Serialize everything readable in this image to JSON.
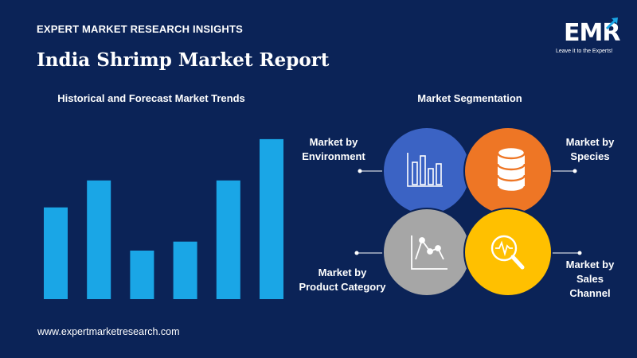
{
  "header": {
    "eyebrow": "EXPERT MARKET RESEARCH INSIGHTS",
    "title": "India Shrimp Market Report"
  },
  "logo": {
    "text": "EMR",
    "tagline": "Leave it to the Experts!"
  },
  "chart_data": {
    "type": "bar",
    "title": "Historical and Forecast Market Trends",
    "values": [
      0.51,
      0.66,
      0.27,
      0.32,
      0.66,
      0.89
    ],
    "ylim": [
      0,
      1
    ],
    "color": "#1aa6e6"
  },
  "segmentation": {
    "title": "Market Segmentation",
    "segments": [
      {
        "label_lines": [
          "Market by",
          "Environment"
        ],
        "color": "#3b63c4",
        "icon": "bar-chart-icon"
      },
      {
        "label_lines": [
          "Market by",
          "Species"
        ],
        "color": "#ee7625",
        "icon": "database-icon"
      },
      {
        "label_lines": [
          "Market by",
          "Product Category"
        ],
        "color": "#a6a6a6",
        "icon": "line-chart-icon"
      },
      {
        "label_lines": [
          "Market by",
          "Sales",
          "Channel"
        ],
        "color": "#ffc000",
        "icon": "magnifier-pulse-icon"
      }
    ]
  },
  "footer": {
    "website": "www.expertmarketresearch.com"
  }
}
